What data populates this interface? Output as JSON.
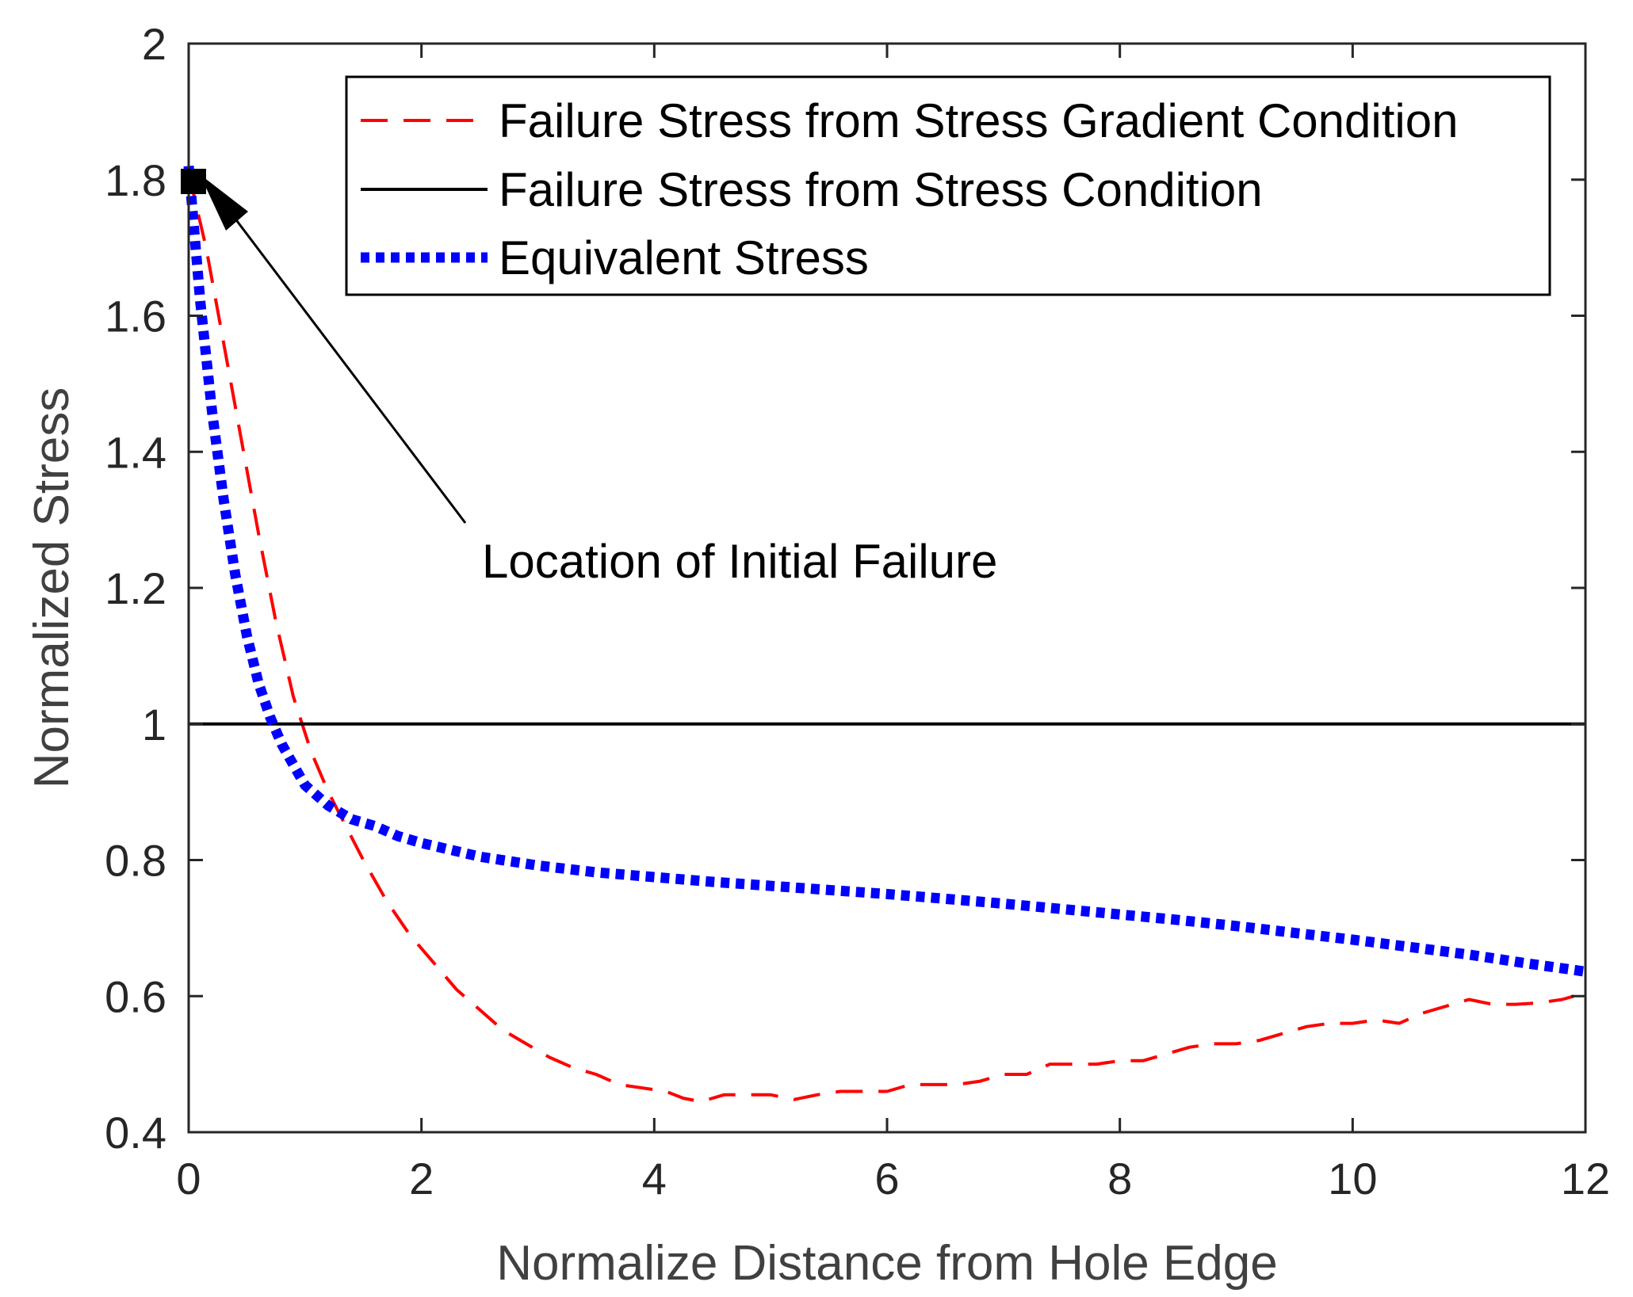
{
  "chart_data": {
    "type": "line",
    "title": "",
    "xlabel": "Normalize Distance from Hole Edge",
    "ylabel": "Normalized Stress",
    "xlim": [
      0,
      12
    ],
    "ylim": [
      0.4,
      2
    ],
    "xticks": [
      0,
      2,
      4,
      6,
      8,
      10,
      12
    ],
    "xtick_labels": [
      "0",
      "2",
      "4",
      "6",
      "8",
      "10",
      "12"
    ],
    "yticks": [
      0.4,
      0.6,
      0.8,
      1.0,
      1.2,
      1.4,
      1.6,
      1.8,
      2.0
    ],
    "ytick_labels": [
      "0.4",
      "0.6",
      "0.8",
      "1",
      "1.2",
      "1.4",
      "1.6",
      "1.8",
      "2"
    ],
    "grid": false,
    "legend_position": "top-right",
    "series": [
      {
        "name": "Failure Stress from Stress Gradient Condition",
        "color": "#ff0000",
        "style": "dashed",
        "x": [
          0,
          0.15,
          0.3,
          0.45,
          0.6,
          0.75,
          0.9,
          1.05,
          1.2,
          1.35,
          1.5,
          1.7,
          1.9,
          2.1,
          2.3,
          2.5,
          2.7,
          2.9,
          3.1,
          3.3,
          3.5,
          3.7,
          3.9,
          4.1,
          4.25,
          4.4,
          4.6,
          4.8,
          5.0,
          5.2,
          5.4,
          5.6,
          5.8,
          6.0,
          6.2,
          6.4,
          6.6,
          6.8,
          7.0,
          7.2,
          7.4,
          7.6,
          7.8,
          8.0,
          8.2,
          8.4,
          8.6,
          8.8,
          9.0,
          9.2,
          9.4,
          9.6,
          9.8,
          10.0,
          10.2,
          10.4,
          10.6,
          10.8,
          11.0,
          11.2,
          11.4,
          11.6,
          11.8,
          11.9
        ],
        "y": [
          1.81,
          1.7,
          1.56,
          1.42,
          1.28,
          1.15,
          1.04,
          0.96,
          0.9,
          0.85,
          0.8,
          0.74,
          0.69,
          0.65,
          0.61,
          0.58,
          0.55,
          0.53,
          0.51,
          0.495,
          0.485,
          0.47,
          0.465,
          0.46,
          0.45,
          0.445,
          0.455,
          0.455,
          0.455,
          0.448,
          0.455,
          0.46,
          0.46,
          0.46,
          0.47,
          0.47,
          0.47,
          0.475,
          0.485,
          0.485,
          0.5,
          0.5,
          0.5,
          0.505,
          0.505,
          0.515,
          0.525,
          0.53,
          0.53,
          0.535,
          0.545,
          0.555,
          0.56,
          0.56,
          0.565,
          0.56,
          0.575,
          0.585,
          0.595,
          0.588,
          0.588,
          0.59,
          0.595,
          0.6
        ]
      },
      {
        "name": "Failure Stress from Stress Condition",
        "color": "#000000",
        "style": "solid",
        "x": [
          0,
          12
        ],
        "y": [
          1.0,
          1.0
        ]
      },
      {
        "name": "Equivalent Stress",
        "color": "#0000ff",
        "style": "dotted",
        "x": [
          0,
          0.1,
          0.2,
          0.3,
          0.4,
          0.5,
          0.6,
          0.7,
          0.8,
          0.9,
          1.0,
          1.2,
          1.4,
          1.6,
          1.8,
          2.0,
          2.5,
          3.0,
          3.5,
          4.0,
          4.5,
          5.0,
          5.5,
          6.0,
          6.5,
          7.0,
          7.5,
          8.0,
          8.5,
          9.0,
          9.5,
          10.0,
          10.5,
          11.0,
          11.5,
          12.0
        ],
        "y": [
          1.82,
          1.62,
          1.46,
          1.33,
          1.22,
          1.13,
          1.06,
          1.01,
          0.97,
          0.94,
          0.91,
          0.88,
          0.86,
          0.85,
          0.835,
          0.825,
          0.805,
          0.792,
          0.782,
          0.775,
          0.768,
          0.762,
          0.756,
          0.75,
          0.743,
          0.736,
          0.728,
          0.72,
          0.712,
          0.703,
          0.693,
          0.683,
          0.672,
          0.661,
          0.648,
          0.636
        ]
      }
    ],
    "annotations": [
      {
        "text": "Location of Initial Failure",
        "point": [
          0.05,
          1.8
        ],
        "marker": "square"
      }
    ]
  }
}
